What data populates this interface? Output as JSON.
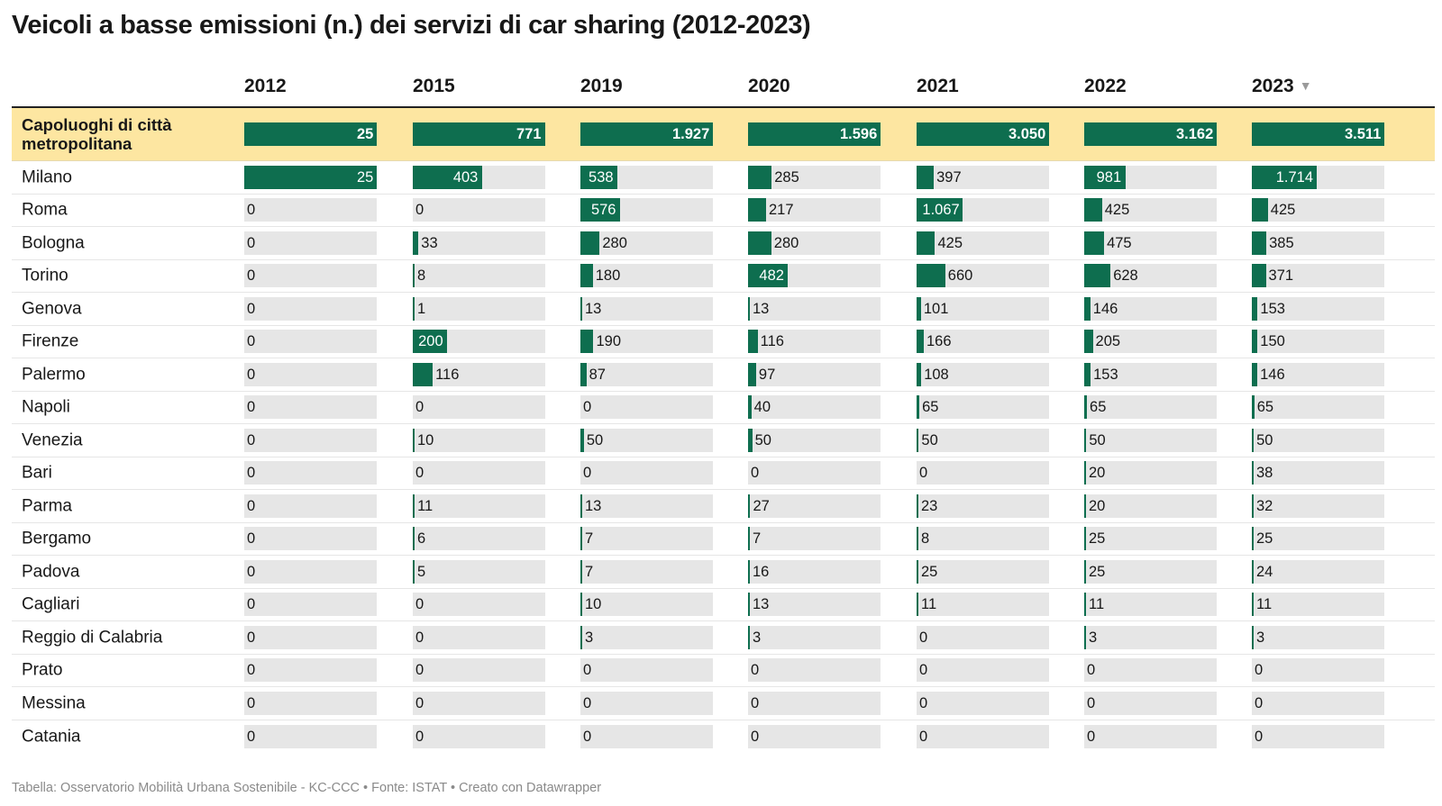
{
  "title": "Veicoli a basse emissioni (n.) dei servizi di car sharing (2012-2023)",
  "footer": "Tabella: Osservatorio Mobilità Urbana Sostenibile - KC-CCC • Fonte: ISTAT • Creato con Datawrapper",
  "sort_icon": "sort-descending-icon",
  "colors": {
    "bar": "#0e6e4f",
    "bar_track": "#e6e6e6",
    "highlight_row": "#fde6a1",
    "text": "#181818",
    "footer_text": "#8a8a8a"
  },
  "chart_data": {
    "type": "table",
    "title": "Veicoli a basse emissioni (n.) dei servizi di car sharing (2012-2023)",
    "columns": [
      "2012",
      "2015",
      "2019",
      "2020",
      "2021",
      "2022",
      "2023"
    ],
    "sorted_by": "2023",
    "sort_order": "descending",
    "total_row": {
      "label": "Capoluoghi di città metropolitana",
      "values": [
        25,
        771,
        1927,
        1596,
        3050,
        3162,
        3511
      ],
      "labels": [
        "25",
        "771",
        "1.927",
        "1.596",
        "3.050",
        "3.162",
        "3.511"
      ]
    },
    "rows": [
      {
        "label": "Milano",
        "values": [
          25,
          403,
          538,
          285,
          397,
          981,
          1714
        ],
        "labels": [
          "25",
          "403",
          "538",
          "285",
          "397",
          "981",
          "1.714"
        ]
      },
      {
        "label": "Roma",
        "values": [
          0,
          0,
          576,
          217,
          1067,
          425,
          425
        ],
        "labels": [
          "0",
          "0",
          "576",
          "217",
          "1.067",
          "425",
          "425"
        ]
      },
      {
        "label": "Bologna",
        "values": [
          0,
          33,
          280,
          280,
          425,
          475,
          385
        ],
        "labels": [
          "0",
          "33",
          "280",
          "280",
          "425",
          "475",
          "385"
        ]
      },
      {
        "label": "Torino",
        "values": [
          0,
          8,
          180,
          482,
          660,
          628,
          371
        ],
        "labels": [
          "0",
          "8",
          "180",
          "482",
          "660",
          "628",
          "371"
        ]
      },
      {
        "label": "Genova",
        "values": [
          0,
          1,
          13,
          13,
          101,
          146,
          153
        ],
        "labels": [
          "0",
          "1",
          "13",
          "13",
          "101",
          "146",
          "153"
        ]
      },
      {
        "label": "Firenze",
        "values": [
          0,
          200,
          190,
          116,
          166,
          205,
          150
        ],
        "labels": [
          "0",
          "200",
          "190",
          "116",
          "166",
          "205",
          "150"
        ]
      },
      {
        "label": "Palermo",
        "values": [
          0,
          116,
          87,
          97,
          108,
          153,
          146
        ],
        "labels": [
          "0",
          "116",
          "87",
          "97",
          "108",
          "153",
          "146"
        ]
      },
      {
        "label": "Napoli",
        "values": [
          0,
          0,
          0,
          40,
          65,
          65,
          65
        ],
        "labels": [
          "0",
          "0",
          "0",
          "40",
          "65",
          "65",
          "65"
        ]
      },
      {
        "label": "Venezia",
        "values": [
          0,
          10,
          50,
          50,
          50,
          50,
          50
        ],
        "labels": [
          "0",
          "10",
          "50",
          "50",
          "50",
          "50",
          "50"
        ]
      },
      {
        "label": "Bari",
        "values": [
          0,
          0,
          0,
          0,
          0,
          20,
          38
        ],
        "labels": [
          "0",
          "0",
          "0",
          "0",
          "0",
          "20",
          "38"
        ]
      },
      {
        "label": "Parma",
        "values": [
          0,
          11,
          13,
          27,
          23,
          20,
          32
        ],
        "labels": [
          "0",
          "11",
          "13",
          "27",
          "23",
          "20",
          "32"
        ]
      },
      {
        "label": "Bergamo",
        "values": [
          0,
          6,
          7,
          7,
          8,
          25,
          25
        ],
        "labels": [
          "0",
          "6",
          "7",
          "7",
          "8",
          "25",
          "25"
        ]
      },
      {
        "label": "Padova",
        "values": [
          0,
          5,
          7,
          16,
          25,
          25,
          24
        ],
        "labels": [
          "0",
          "5",
          "7",
          "16",
          "25",
          "25",
          "24"
        ]
      },
      {
        "label": "Cagliari",
        "values": [
          0,
          0,
          10,
          13,
          11,
          11,
          11
        ],
        "labels": [
          "0",
          "0",
          "10",
          "13",
          "11",
          "11",
          "11"
        ]
      },
      {
        "label": "Reggio di Calabria",
        "values": [
          0,
          0,
          3,
          3,
          0,
          3,
          3
        ],
        "labels": [
          "0",
          "0",
          "3",
          "3",
          "0",
          "3",
          "3"
        ]
      },
      {
        "label": "Prato",
        "values": [
          0,
          0,
          0,
          0,
          0,
          0,
          0
        ],
        "labels": [
          "0",
          "0",
          "0",
          "0",
          "0",
          "0",
          "0"
        ]
      },
      {
        "label": "Messina",
        "values": [
          0,
          0,
          0,
          0,
          0,
          0,
          0
        ],
        "labels": [
          "0",
          "0",
          "0",
          "0",
          "0",
          "0",
          "0"
        ]
      },
      {
        "label": "Catania",
        "values": [
          0,
          0,
          0,
          0,
          0,
          0,
          0
        ],
        "labels": [
          "0",
          "0",
          "0",
          "0",
          "0",
          "0",
          "0"
        ]
      }
    ]
  }
}
